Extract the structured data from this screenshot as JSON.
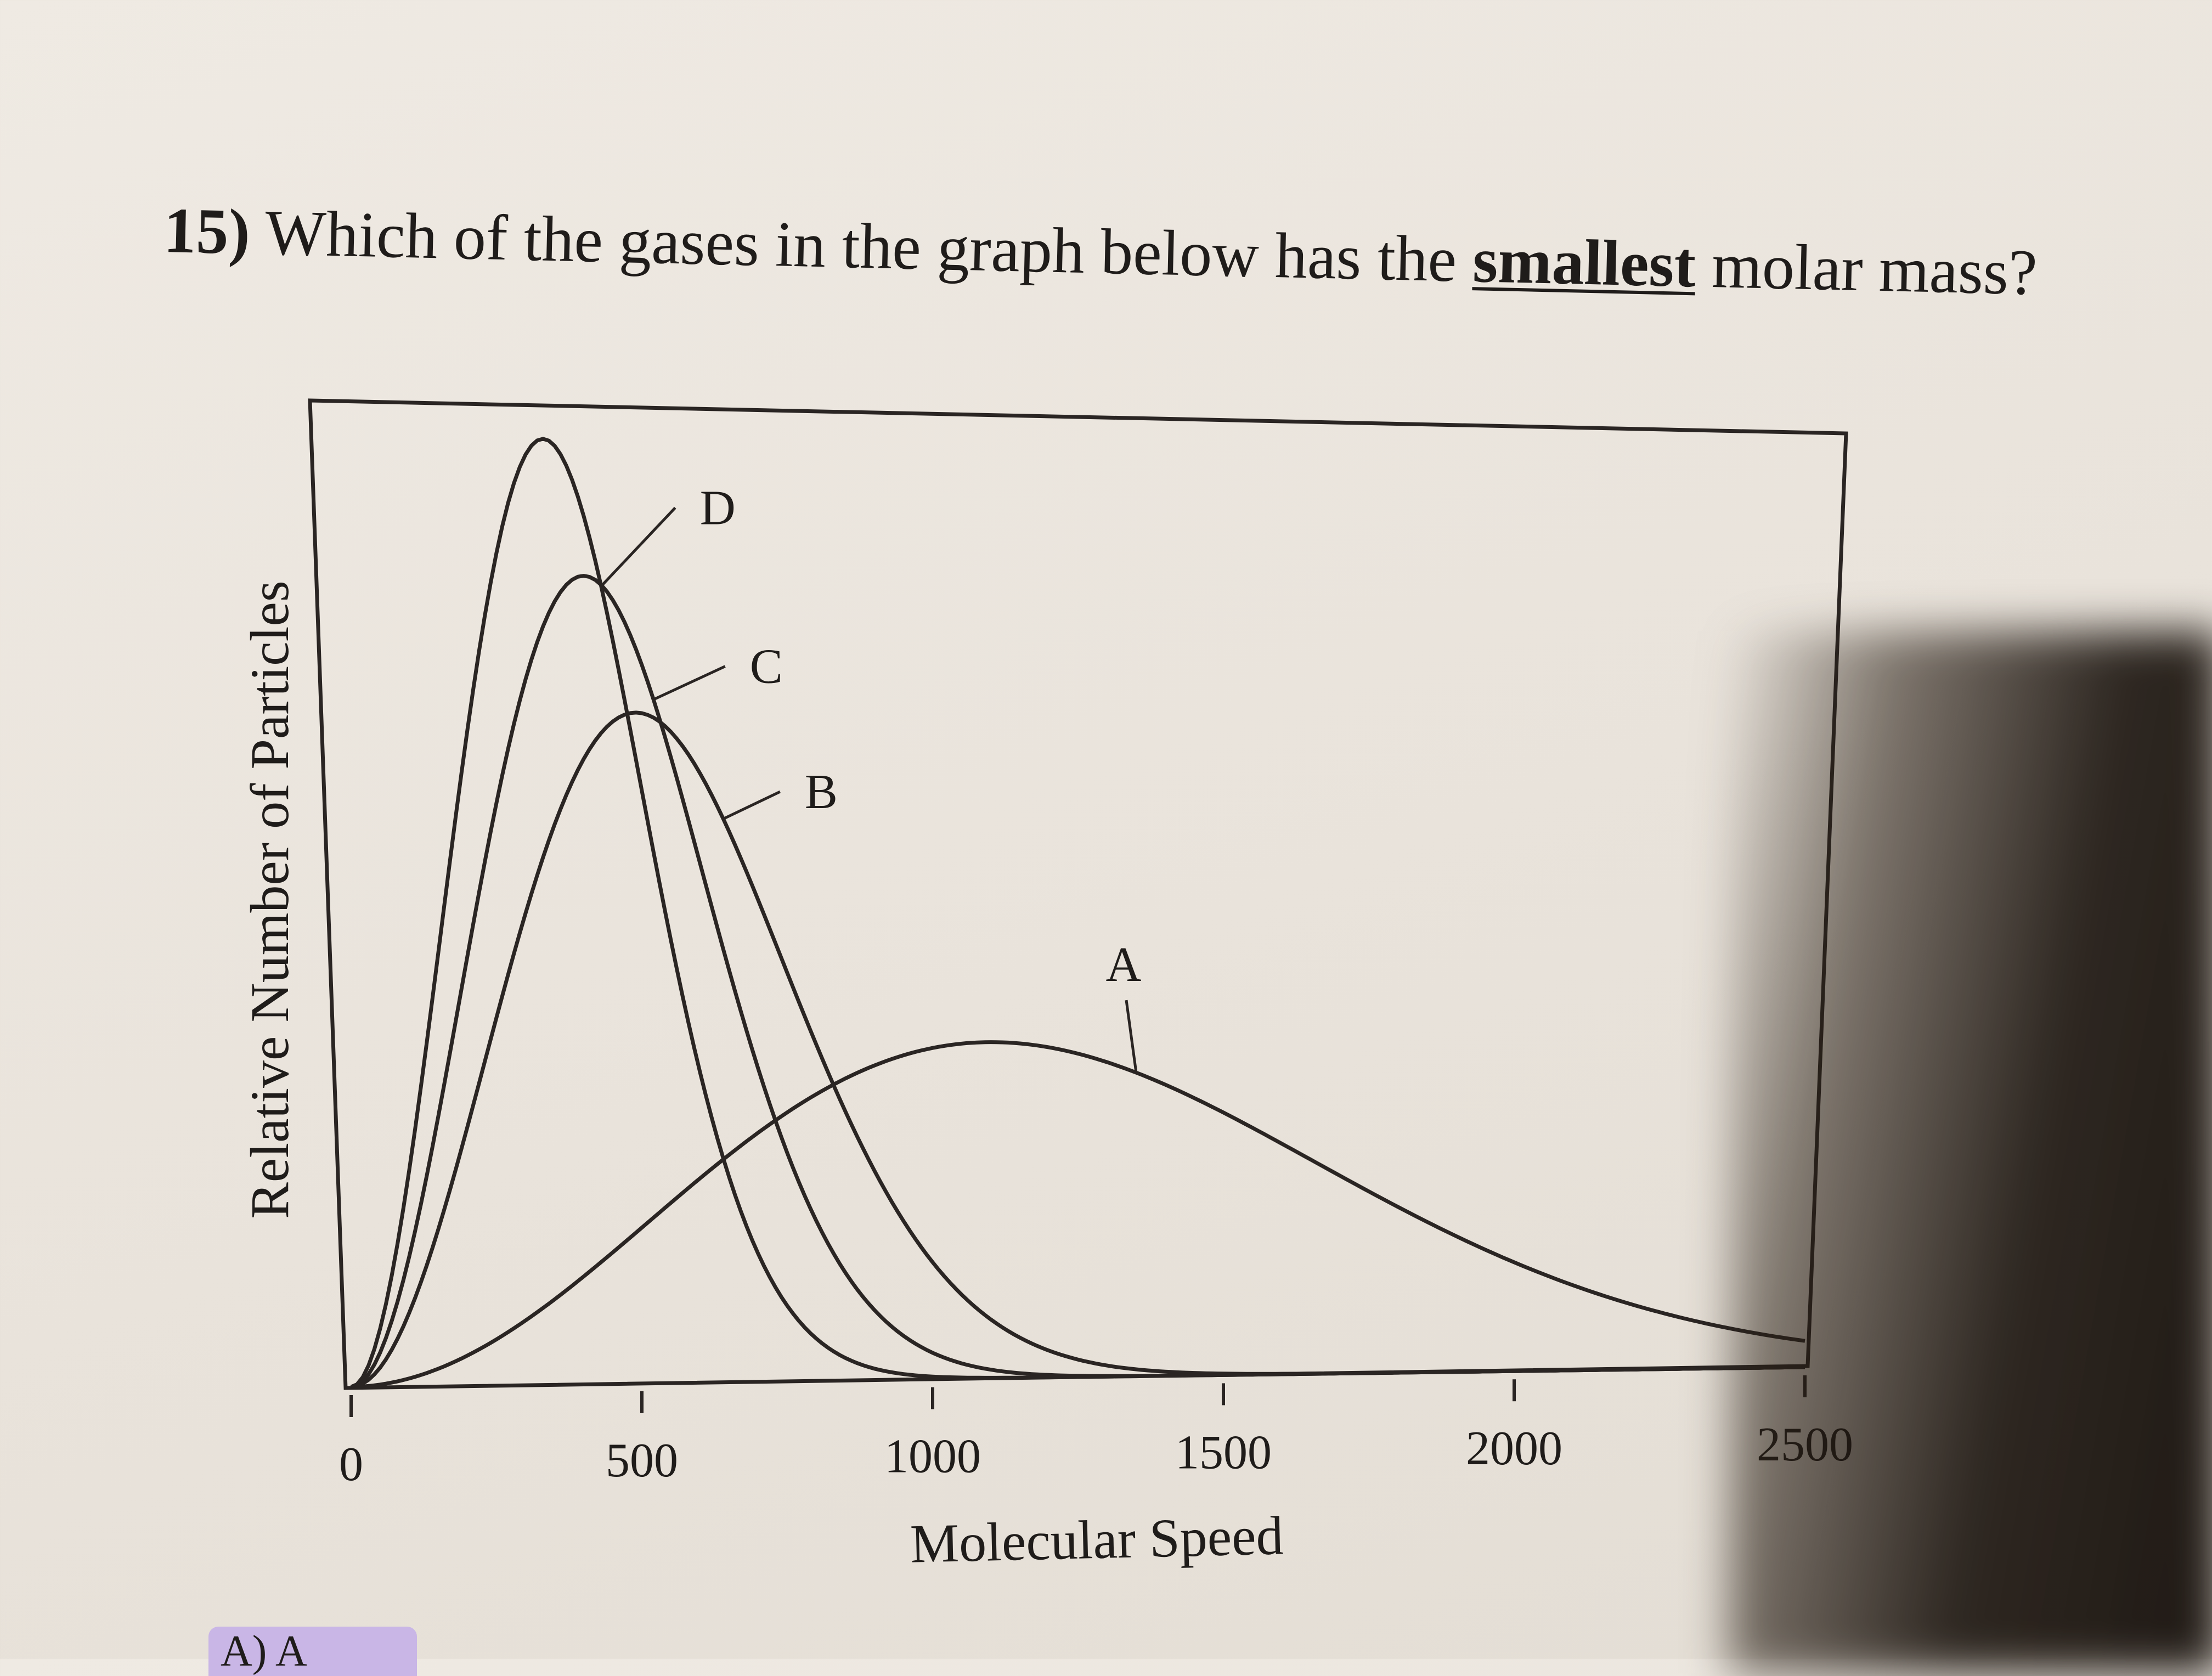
{
  "question": {
    "number": "15)",
    "text_before": "Which of the gases in the graph below has the",
    "emphasis": "smallest",
    "text_after": "molar mass?"
  },
  "chart_data": {
    "type": "line",
    "xlabel": "Molecular Speed",
    "ylabel": "Relative Number of Particles",
    "xlim": [
      0,
      2500
    ],
    "x_ticks": [
      "0",
      "500",
      "1000",
      "1500",
      "2000",
      "2500"
    ],
    "series": [
      {
        "name": "A",
        "peak_x": 1100,
        "peak_y": 0.35
      },
      {
        "name": "B",
        "peak_x": 490,
        "peak_y": 0.69
      },
      {
        "name": "C",
        "peak_x": 400,
        "peak_y": 0.83
      },
      {
        "name": "D",
        "peak_x": 330,
        "peak_y": 0.97
      }
    ]
  },
  "answer_option": "A) A"
}
